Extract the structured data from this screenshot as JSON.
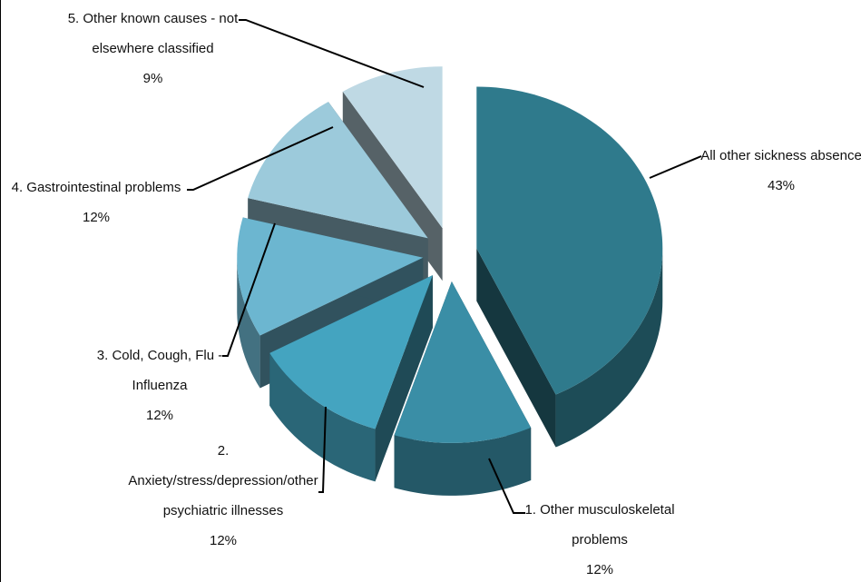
{
  "chart_data": {
    "type": "pie",
    "categories": [
      "All other sickness absence",
      "1. Other musculoskeletal problems",
      "2. Anxiety/stress/depression/other psychiatric illnesses",
      "3. Cold, Cough, Flu - Influenza",
      "4. Gastrointestinal problems",
      "5. Other known causes - not elsewhere classified"
    ],
    "values": [
      43,
      12,
      12,
      12,
      12,
      9
    ],
    "value_labels": [
      "43%",
      "12%",
      "12%",
      "12%",
      "12%",
      "9%"
    ],
    "colors": [
      "#2f7a8c",
      "#3a8ea6",
      "#44a4c0",
      "#6cb6d0",
      "#9ccadb",
      "#bfd9e4"
    ]
  }
}
